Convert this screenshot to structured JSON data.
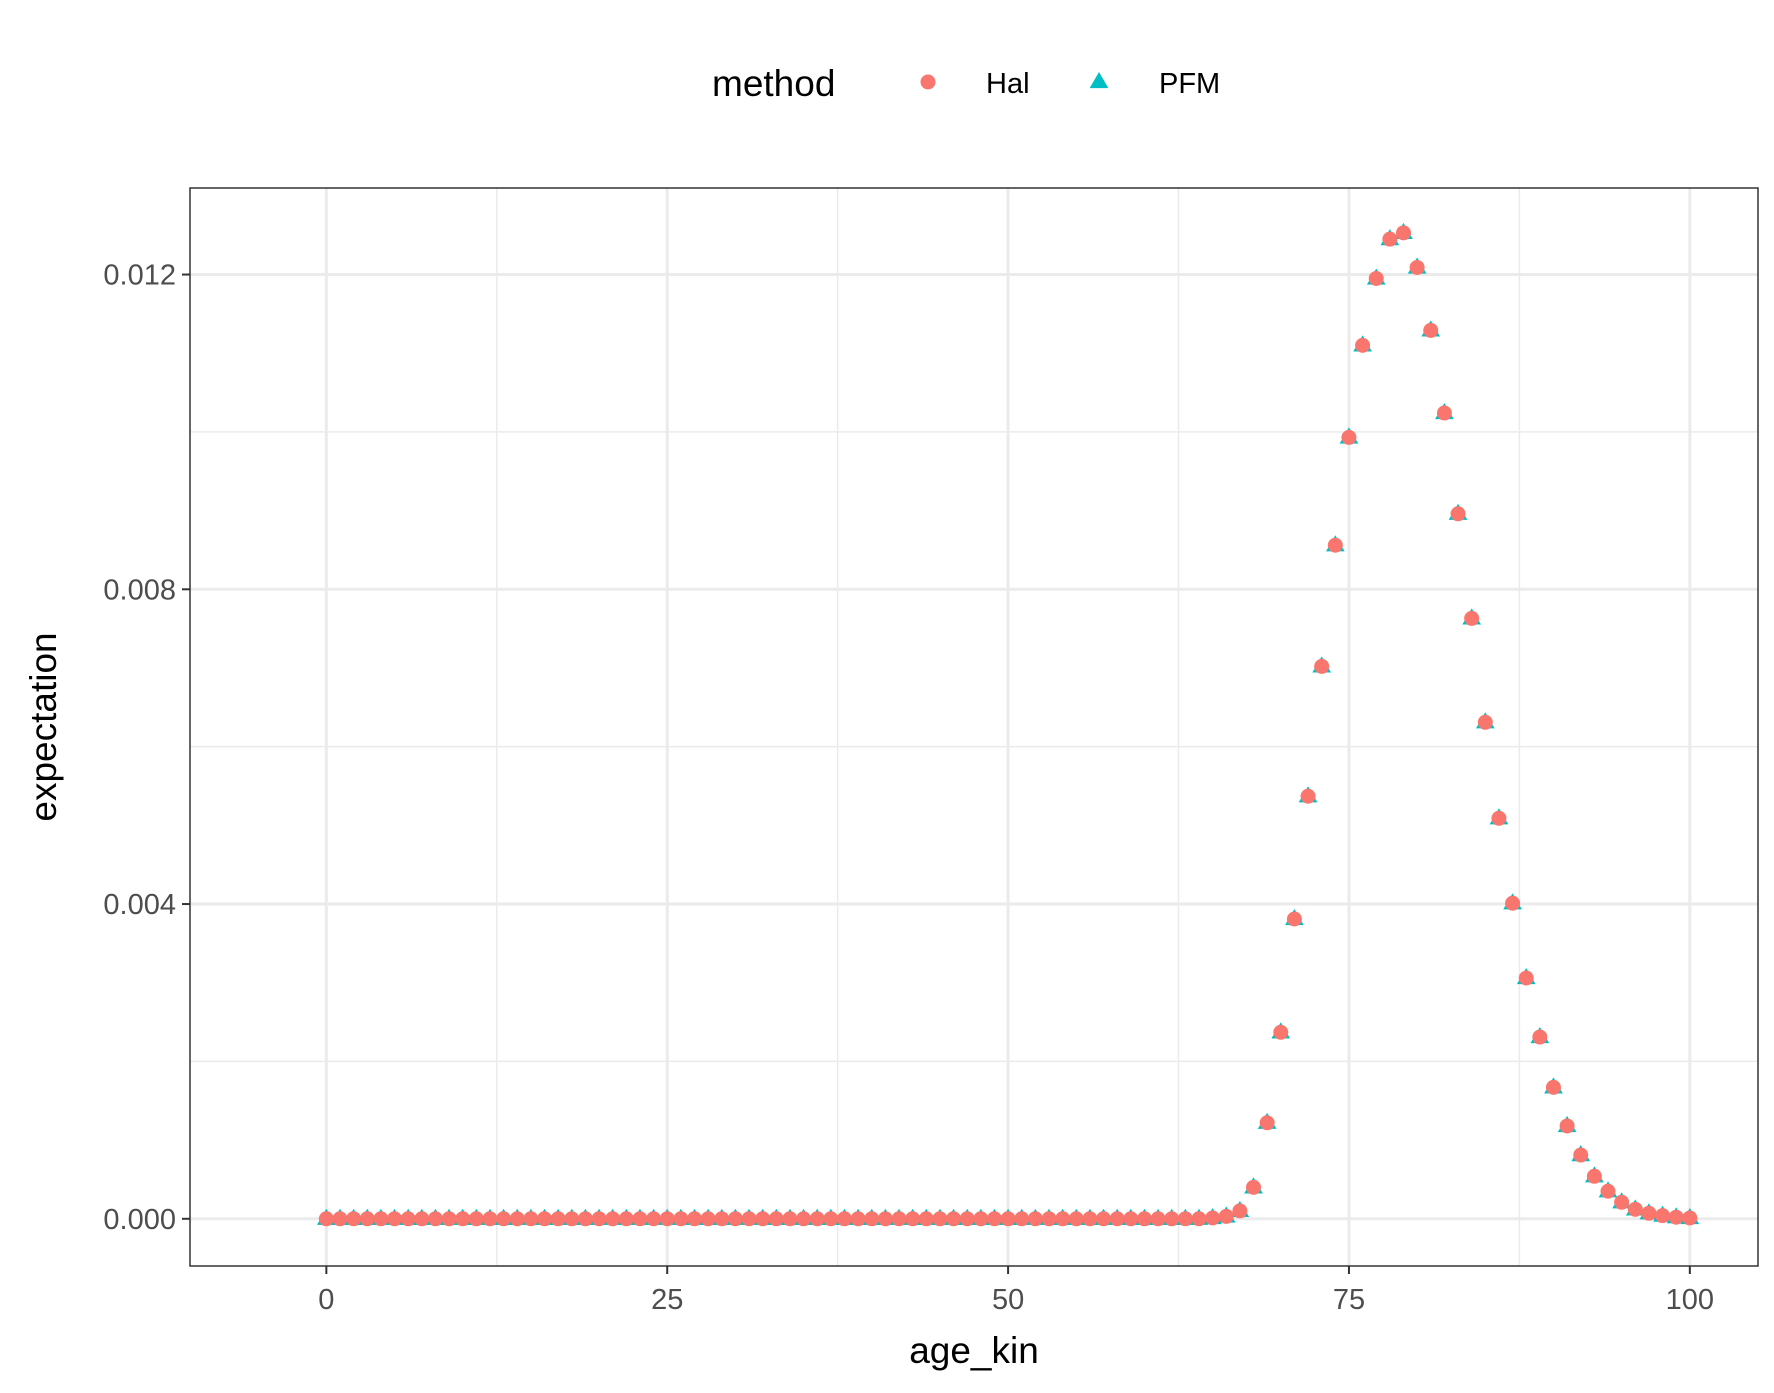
{
  "chart_data": {
    "type": "scatter",
    "xlabel": "age_kin",
    "ylabel": "expectation",
    "xlim": [
      -10,
      105
    ],
    "ylim": [
      -0.0006,
      0.0131
    ],
    "x_ticks": [
      0,
      25,
      50,
      75,
      100
    ],
    "x_tick_labels": [
      "0",
      "25",
      "50",
      "75",
      "100"
    ],
    "x_minor_ticks": [
      12.5,
      37.5,
      62.5,
      87.5
    ],
    "y_ticks": [
      0,
      0.004,
      0.008,
      0.012
    ],
    "y_tick_labels": [
      "0.000",
      "0.004",
      "0.008",
      "0.012"
    ],
    "y_minor_ticks": [
      0.002,
      0.006,
      0.01
    ],
    "grid": true,
    "theme": "bw",
    "legend": {
      "title": "method",
      "position": "top",
      "entries": [
        {
          "label": "Hal",
          "shape": "circle",
          "color": "#F8766D"
        },
        {
          "label": "PFM",
          "shape": "triangle",
          "color": "#00BFC4"
        }
      ]
    },
    "x": [
      0,
      1,
      2,
      3,
      4,
      5,
      6,
      7,
      8,
      9,
      10,
      11,
      12,
      13,
      14,
      15,
      16,
      17,
      18,
      19,
      20,
      21,
      22,
      23,
      24,
      25,
      26,
      27,
      28,
      29,
      30,
      31,
      32,
      33,
      34,
      35,
      36,
      37,
      38,
      39,
      40,
      41,
      42,
      43,
      44,
      45,
      46,
      47,
      48,
      49,
      50,
      51,
      52,
      53,
      54,
      55,
      56,
      57,
      58,
      59,
      60,
      61,
      62,
      63,
      64,
      65,
      66,
      67,
      68,
      69,
      70,
      71,
      72,
      73,
      74,
      75,
      76,
      77,
      78,
      79,
      80,
      81,
      82,
      83,
      84,
      85,
      86,
      87,
      88,
      89,
      90,
      91,
      92,
      93,
      94,
      95,
      96,
      97,
      98,
      99,
      100
    ],
    "series": [
      {
        "name": "PFM",
        "shape": "triangle",
        "color": "#00BFC4",
        "values": [
          0,
          0,
          0,
          0,
          0,
          0,
          0,
          0,
          0,
          0,
          0,
          0,
          0,
          0,
          0,
          0,
          0,
          0,
          0,
          0,
          0,
          0,
          0,
          0,
          0,
          0,
          0,
          0,
          0,
          0,
          0,
          0,
          0,
          0,
          0,
          0,
          0,
          0,
          0,
          0,
          0,
          0,
          0,
          0,
          0,
          0,
          0,
          0,
          0,
          0,
          0,
          0,
          0,
          0,
          0,
          0,
          0,
          0,
          0,
          0,
          0,
          0,
          0,
          0,
          0,
          1e-05,
          3e-05,
          0.0001,
          0.0004,
          0.00122,
          0.00237,
          0.00381,
          0.00537,
          0.00702,
          0.00856,
          0.00993,
          0.0111,
          0.01195,
          0.01245,
          0.01253,
          0.01209,
          0.01129,
          0.01024,
          0.00896,
          0.00763,
          0.00631,
          0.00509,
          0.00401,
          0.00306,
          0.00231,
          0.00167,
          0.00118,
          0.00081,
          0.00054,
          0.00035,
          0.00021,
          0.00012,
          7e-05,
          4e-05,
          2e-05,
          1e-05
        ]
      },
      {
        "name": "Hal",
        "shape": "circle",
        "color": "#F8766D",
        "values": [
          0,
          0,
          0,
          0,
          0,
          0,
          0,
          0,
          0,
          0,
          0,
          0,
          0,
          0,
          0,
          0,
          0,
          0,
          0,
          0,
          0,
          0,
          0,
          0,
          0,
          0,
          0,
          0,
          0,
          0,
          0,
          0,
          0,
          0,
          0,
          0,
          0,
          0,
          0,
          0,
          0,
          0,
          0,
          0,
          0,
          0,
          0,
          0,
          0,
          0,
          0,
          0,
          0,
          0,
          0,
          0,
          0,
          0,
          0,
          0,
          0,
          0,
          0,
          0,
          0,
          1e-05,
          3e-05,
          0.0001,
          0.0004,
          0.00122,
          0.00237,
          0.00381,
          0.00537,
          0.00702,
          0.00856,
          0.00993,
          0.0111,
          0.01195,
          0.01245,
          0.01253,
          0.01209,
          0.01129,
          0.01024,
          0.00896,
          0.00763,
          0.00631,
          0.00509,
          0.00401,
          0.00306,
          0.00231,
          0.00167,
          0.00118,
          0.00081,
          0.00054,
          0.00035,
          0.00021,
          0.00012,
          7e-05,
          4e-05,
          2e-05,
          1e-05
        ]
      }
    ]
  }
}
